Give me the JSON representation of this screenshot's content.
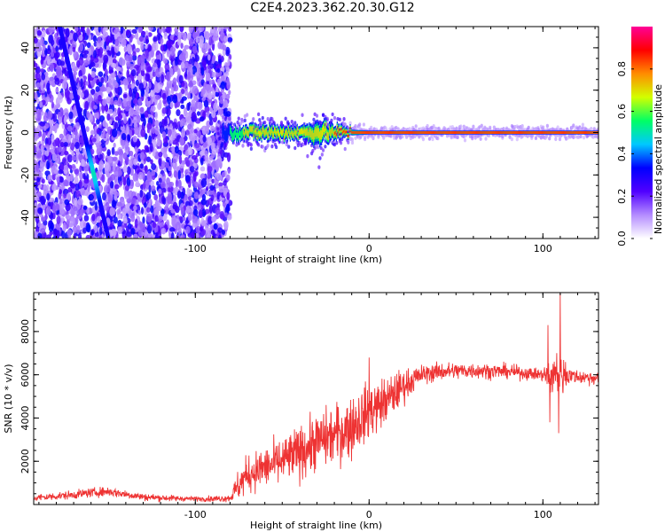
{
  "title": "C2E4.2023.362.20.30.G12",
  "chart_data": [
    {
      "type": "heatmap",
      "xlabel": "Height of straight line (km)",
      "ylabel": "Frequency (Hz)",
      "xlim": [
        -193,
        132
      ],
      "ylim": [
        -50,
        50
      ],
      "x_ticks": [
        -100,
        0,
        100
      ],
      "x_tick_labels": [
        "-100",
        "0",
        "100"
      ],
      "y_ticks": [
        -40,
        -20,
        0,
        20,
        40
      ],
      "y_tick_labels": [
        "-40",
        "-20",
        "0",
        "20",
        "40"
      ],
      "colorbar": {
        "label": "Normalized spectral amplitude",
        "range": [
          0,
          1
        ],
        "ticks": [
          0.0,
          0.2,
          0.4,
          0.6,
          0.8
        ],
        "tick_labels": [
          "0.0",
          "0.2",
          "0.4",
          "0.6",
          "0.8"
        ],
        "colors": [
          "#ffffff",
          "#b48cff",
          "#5000ff",
          "#0000ff",
          "#00c8ff",
          "#00ff64",
          "#d2ff00",
          "#ff8c00",
          "#ff0000",
          "#ff0096"
        ]
      },
      "noise_region": {
        "x": [
          -193,
          -80
        ],
        "y": [
          -50,
          50
        ],
        "amplitude": 0.15
      },
      "diagonal_streak": {
        "x": [
          -178,
          -150
        ],
        "y": [
          50,
          -50
        ],
        "peak": [
          -162,
          -20
        ]
      },
      "carrier": {
        "frequency": 0,
        "x": [
          -87,
          132
        ],
        "points": [
          [
            -87,
            0.2
          ],
          [
            -80,
            0.5
          ],
          [
            -70,
            0.7
          ],
          [
            -60,
            0.75
          ],
          [
            -50,
            0.7
          ],
          [
            -40,
            0.65
          ],
          [
            -30,
            0.7
          ],
          [
            -20,
            0.8
          ],
          [
            -10,
            0.85
          ],
          [
            0,
            0.85
          ],
          [
            20,
            0.85
          ],
          [
            40,
            0.85
          ],
          [
            60,
            0.85
          ],
          [
            80,
            0.85
          ],
          [
            100,
            0.85
          ],
          [
            110,
            0.8
          ],
          [
            132,
            0.85
          ]
        ],
        "spread_hz": [
          [
            -87,
            5
          ],
          [
            -60,
            6
          ],
          [
            -40,
            5
          ],
          [
            -30,
            10
          ],
          [
            -20,
            6
          ],
          [
            -10,
            3
          ],
          [
            0,
            2
          ],
          [
            132,
            2
          ]
        ]
      }
    },
    {
      "type": "line",
      "xlabel": "Height of straight line (km)",
      "ylabel": "SNR (10 * v/v)",
      "xlim": [
        -193,
        132
      ],
      "ylim": [
        0,
        9800
      ],
      "x_ticks": [
        -100,
        0,
        100
      ],
      "x_tick_labels": [
        "-100",
        "0",
        "100"
      ],
      "y_ticks": [
        2000,
        4000,
        6000,
        8000
      ],
      "y_tick_labels": [
        "2000",
        "4000",
        "6000",
        "8000"
      ],
      "color": "#ee3333",
      "series": [
        {
          "x": [
            -193,
            -170,
            -160,
            -150,
            -130,
            -110,
            -90,
            -80,
            -75,
            -70,
            -60,
            -50,
            -40,
            -30,
            -20,
            -10,
            -5,
            0,
            10,
            20,
            30,
            40,
            60,
            80,
            100,
            105,
            110,
            115,
            120,
            132
          ],
          "y": [
            300,
            450,
            550,
            600,
            350,
            280,
            260,
            300,
            900,
            1400,
            1700,
            2000,
            2400,
            2900,
            3200,
            3600,
            4000,
            4300,
            4800,
            5500,
            6000,
            6150,
            6200,
            6150,
            6000,
            5900,
            6000,
            6000,
            5900,
            5850
          ],
          "noise": [
            [
              -193,
              150
            ],
            [
              -150,
              200
            ],
            [
              -100,
              100
            ],
            [
              -80,
              150
            ],
            [
              -75,
              700
            ],
            [
              -40,
              1100
            ],
            [
              -10,
              1300
            ],
            [
              10,
              1000
            ],
            [
              30,
              400
            ],
            [
              100,
              250
            ],
            [
              103,
              900
            ],
            [
              112,
              900
            ],
            [
              116,
              300
            ],
            [
              132,
              300
            ]
          ],
          "spikes": [
            [
              0,
              6800
            ],
            [
              103,
              8300
            ],
            [
              108,
              7000
            ],
            [
              110,
              9800
            ],
            [
              109,
              3300
            ],
            [
              104,
              3800
            ]
          ]
        }
      ]
    }
  ]
}
